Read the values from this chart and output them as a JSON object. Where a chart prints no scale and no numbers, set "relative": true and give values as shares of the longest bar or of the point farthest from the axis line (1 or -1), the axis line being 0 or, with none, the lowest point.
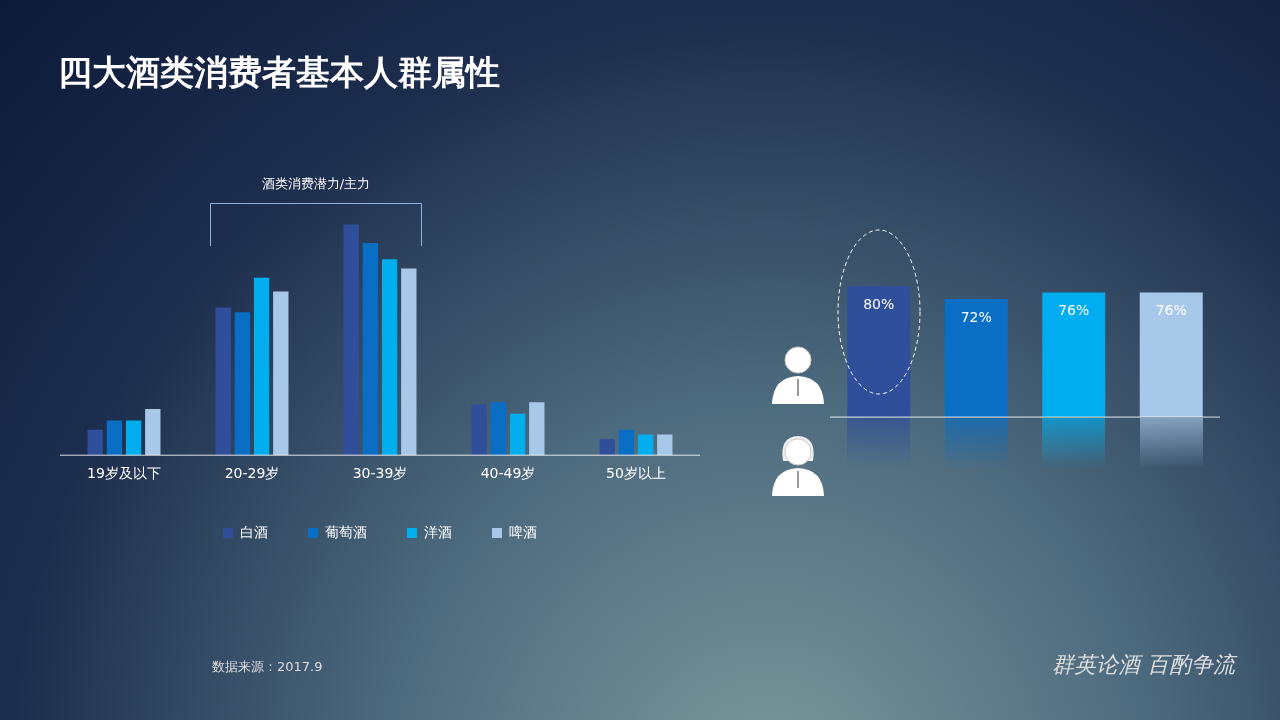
{
  "chart_data": [
    {
      "type": "bar",
      "title": "四大酒类消费者基本人群属性",
      "relative": true,
      "legend": "bottom",
      "categories": [
        "19岁及以下",
        "20-29岁",
        "30-39岁",
        "40-49岁",
        "50岁以上"
      ],
      "series": [
        {
          "name": "白酒",
          "color": "#2f4f9a",
          "values": [
            0.11,
            0.64,
            1,
            0.22,
            0.07
          ]
        },
        {
          "name": "葡萄酒",
          "color": "#0a6fc4",
          "values": [
            0.15,
            0.62,
            0.92,
            0.23,
            0.11
          ]
        },
        {
          "name": "洋酒",
          "color": "#00aeef",
          "values": [
            0.15,
            0.77,
            0.85,
            0.18,
            0.09
          ]
        },
        {
          "name": "啤酒",
          "color": "#a8c8ea",
          "values": [
            0.2,
            0.71,
            0.81,
            0.23,
            0.09
          ]
        }
      ],
      "annotations": [
        "酒类消费潜力/主力",
        "数据来源：2017.9",
        "群英论酒 百酌争流"
      ]
    },
    {
      "type": "bar",
      "categories": [
        null,
        null,
        null,
        null
      ],
      "series": [
        {
          "colors": [
            "#2f4f9a",
            "#0a6fc4",
            "#00aeef",
            "#a8c8ea"
          ],
          "values": [
            80,
            72,
            76,
            76
          ],
          "value_labels": [
            "80%",
            "72%",
            "76%",
            "76%"
          ]
        }
      ]
    }
  ]
}
